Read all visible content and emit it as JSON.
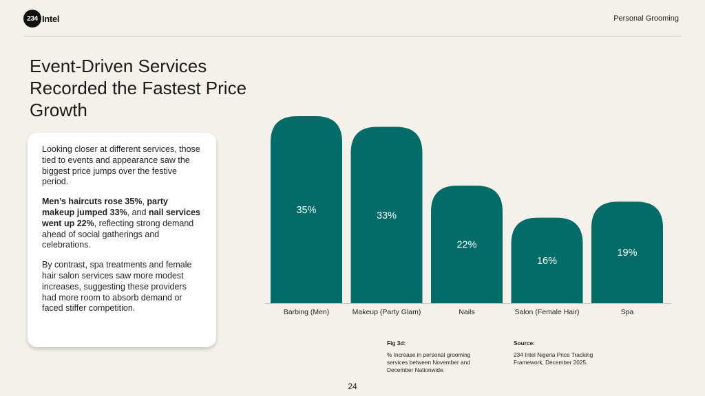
{
  "header": {
    "logo_number": "234",
    "logo_word": "Intel",
    "section": "Personal Grooming"
  },
  "title": "Event-Driven Services Recorded the Fastest Price Growth",
  "card": {
    "para1": "Looking closer at different services, those tied to events and appearance saw the biggest price jumps over the festive period.",
    "para2_bold1": "Men’s haircuts rose 35%",
    "para2_sep1": ", ",
    "para2_bold2": "party makeup jumped 33%",
    "para2_sep2": ", and ",
    "para2_bold3": "nail services went up 22%",
    "para2_rest": ", reflecting strong demand ahead of social gatherings and celebrations.",
    "para3": "By contrast, spa treatments and female hair salon services saw more modest increases, suggesting these providers had more room to absorb demand or faced stiffer competition."
  },
  "chart_data": {
    "type": "bar",
    "title": "",
    "xlabel": "",
    "ylabel": "",
    "categories": [
      "Barbing (Men)",
      "Makeup (Party Glam)",
      "Nails",
      "Salon (Female Hair)",
      "Spa"
    ],
    "values": [
      35,
      33,
      22,
      16,
      19
    ],
    "data_labels": [
      "35%",
      "33%",
      "22%",
      "16%",
      "19%"
    ],
    "ylim": [
      0,
      35
    ],
    "grid": false,
    "bar_color": "#036b68",
    "label_color": "#ffffff"
  },
  "caption": {
    "fig_heading": "Fig 3d:",
    "fig_text": "% Increase in personal grooming services between November and December Nationwide.",
    "source_heading": "Source:",
    "source_text": "234 Intel Nigeria Price Tracking Framework, December 2025."
  },
  "page_number": "24"
}
